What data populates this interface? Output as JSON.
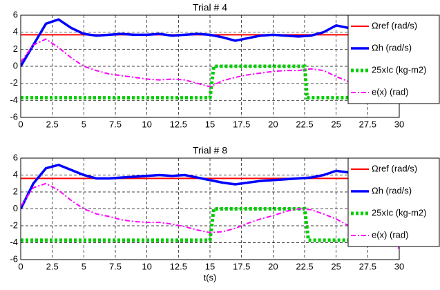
{
  "chart_data": [
    {
      "type": "line",
      "title": "Trial # 4",
      "xlim": [
        0,
        30
      ],
      "ylim": [
        -6,
        6
      ],
      "xticks": [
        0,
        2.5,
        5,
        7.5,
        10,
        12.5,
        15,
        17.5,
        20,
        22.5,
        25,
        27.5,
        30
      ],
      "yticks": [
        -6,
        -4,
        -2,
        0,
        2,
        4,
        6
      ],
      "grid": true,
      "legend": "upper right",
      "x": [
        0,
        1,
        2,
        3,
        4,
        5,
        6,
        7,
        8,
        9,
        10,
        11,
        12,
        13,
        14,
        15,
        16,
        17,
        18,
        19,
        20,
        21,
        22,
        23,
        24,
        25,
        26,
        27,
        28,
        29,
        30
      ],
      "series": [
        {
          "name": "Ωref (rad/s)",
          "color": "#ff0000",
          "style": "solid",
          "width": 2,
          "x": [
            0,
            30
          ],
          "values": [
            3.7,
            3.7
          ]
        },
        {
          "name": "Ωh (rad/s)",
          "color": "#0000ff",
          "style": "solid",
          "width": 3.5,
          "values": [
            0,
            2.5,
            5,
            5.5,
            4.5,
            3.8,
            3.6,
            3.7,
            3.8,
            3.7,
            3.7,
            3.8,
            3.6,
            3.7,
            3.8,
            3.7,
            3.4,
            3.0,
            3.3,
            3.6,
            3.7,
            3.6,
            3.5,
            3.6,
            4.0,
            4.8,
            4.5,
            3.9,
            3.7,
            3.7,
            3.7
          ]
        },
        {
          "name": "25xIc (kg-m2)",
          "color": "#00cc00",
          "style": "dotted",
          "width": 5,
          "x": [
            0,
            15,
            15.3,
            22.5,
            22.7,
            30
          ],
          "values": [
            -3.7,
            -3.7,
            0,
            0,
            -3.7,
            -3.7
          ]
        },
        {
          "name": "e(x) (rad)",
          "color": "#ff00ff",
          "style": "dashdot",
          "width": 2,
          "values": [
            0.5,
            2.5,
            3.2,
            2.2,
            1,
            0,
            -0.5,
            -0.9,
            -1.1,
            -1.3,
            -1.5,
            -1.6,
            -1.5,
            -1.6,
            -2,
            -2.4,
            -1.7,
            -1.3,
            -1.0,
            -0.8,
            -0.6,
            -0.5,
            -0.5,
            -0.3,
            -0.5,
            -1.2,
            -1.8,
            -2.4,
            -2.6,
            -3,
            -4
          ]
        }
      ]
    },
    {
      "type": "line",
      "title": "Trial # 8",
      "xlabel": "t(s)",
      "xlim": [
        0,
        30
      ],
      "ylim": [
        -6,
        6
      ],
      "xticks": [
        0,
        2.5,
        5,
        7.5,
        10,
        12.5,
        15,
        17.5,
        20,
        22.5,
        25,
        27.5,
        30
      ],
      "yticks": [
        -6,
        -4,
        -2,
        0,
        2,
        4,
        6
      ],
      "grid": true,
      "legend": "upper right",
      "x": [
        0,
        1,
        2,
        3,
        4,
        5,
        6,
        7,
        8,
        9,
        10,
        11,
        12,
        13,
        14,
        15,
        16,
        17,
        18,
        19,
        20,
        21,
        22,
        23,
        24,
        25,
        26,
        27,
        28,
        29,
        30
      ],
      "series": [
        {
          "name": "Ωref (rad/s)",
          "color": "#ff0000",
          "style": "solid",
          "width": 2,
          "x": [
            0,
            30
          ],
          "values": [
            3.6,
            3.6
          ]
        },
        {
          "name": "Ωh (rad/s)",
          "color": "#0000ff",
          "style": "solid",
          "width": 3.5,
          "values": [
            0,
            3,
            4.8,
            5.2,
            4.6,
            4.0,
            3.6,
            3.6,
            3.7,
            3.8,
            3.9,
            4.0,
            3.9,
            4.0,
            3.7,
            3.4,
            3.1,
            2.9,
            3.1,
            3.3,
            3.4,
            3.5,
            3.6,
            3.7,
            4.0,
            4.5,
            4.3,
            4.3,
            4.3,
            4.3,
            4.3
          ]
        },
        {
          "name": "25xIc (kg-m2)",
          "color": "#00cc00",
          "style": "dotted",
          "width": 5,
          "x": [
            0,
            15,
            15.3,
            22.5,
            22.8,
            30
          ],
          "values": [
            -3.7,
            -3.7,
            0,
            0,
            -3.7,
            -3.7
          ]
        },
        {
          "name": "e(x) (rad)",
          "color": "#ff00ff",
          "style": "dashdot",
          "width": 2,
          "values": [
            0.3,
            2.5,
            3,
            2.2,
            1,
            0,
            -0.6,
            -0.9,
            -1.3,
            -1.5,
            -1.6,
            -1.6,
            -1.8,
            -2.1,
            -2.5,
            -2.8,
            -2.7,
            -2.3,
            -1.7,
            -1.2,
            -0.8,
            -0.3,
            0,
            -0.1,
            -0.6,
            -1.2,
            -2,
            -2.5,
            -3,
            -3.4,
            -4.7
          ]
        }
      ]
    }
  ]
}
